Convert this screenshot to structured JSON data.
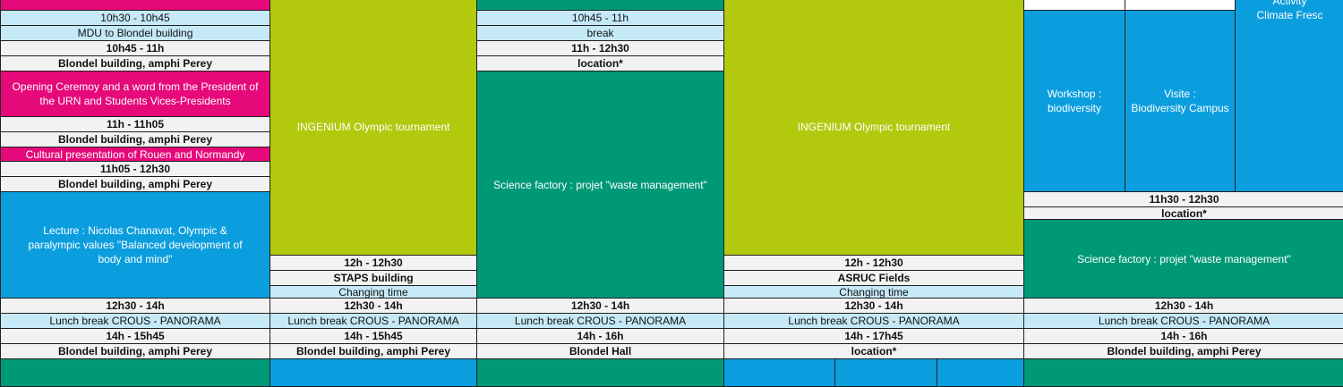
{
  "mon": {
    "t1": "10h30 - 10h45",
    "l1": "MDU to Blondel building",
    "t2": "10h45 - 11h",
    "l2": "Blondel building, amphi Perey",
    "opening": "Opening Ceremoy and a word from the President of the URN and Students Vices-Presidents",
    "t3": "11h - 11h05",
    "l3": "Blondel building, amphi Perey",
    "cultural": "Cultural presentation of Rouen and Normandy",
    "t4": "11h05 - 12h30",
    "l4": "Blondel building, amphi Perey",
    "lecture": "Lecture : Nicolas Chanavat, Olympic & paralympic values \"Balanced development of body and mind\"",
    "t5": "12h30 - 14h",
    "lunch": "Lunch break  CROUS - PANORAMA",
    "t6": "14h - 15h45",
    "l6": "Blondel building, amphi Perey"
  },
  "tue": {
    "olympic": "INGENIUM Olympic tournament",
    "t1": "12h - 12h30",
    "l1": "STAPS building",
    "changing": "Changing time",
    "t2": "12h30 - 14h",
    "lunch": "Lunch break  CROUS - PANORAMA",
    "t3": "14h - 15h45",
    "l3": "Blondel building, amphi Perey"
  },
  "wed": {
    "t1": "10h45 - 11h",
    "break": "break",
    "t2": "11h - 12h30",
    "l2": "location*",
    "science": "Science factory : projet \"waste management\"",
    "t3": "12h30 - 14h",
    "lunch": "Lunch break  CROUS - PANORAMA",
    "t4": "14h - 16h",
    "l4": "Blondel Hall"
  },
  "thu": {
    "olympic": "INGENIUM Olympic tournament",
    "t1": "12h - 12h30",
    "l1": "ASRUC Fields",
    "changing": "Changing time",
    "t2": "12h30 - 14h",
    "lunch": "Lunch break  CROUS - PANORAMA",
    "t3": "14h - 17h45",
    "l3": "location*"
  },
  "fri": {
    "activity_top": "Activity",
    "activity": "Climate Fresc",
    "workshop_a": "Workshop :",
    "workshop_b": "biodiversity",
    "visit_a": "Visite :",
    "visit_b": "Biodiversity Campus",
    "t1": "11h30 - 12h30",
    "l1": "location*",
    "science": "Science factory : projet \"waste management\"",
    "t2": "12h30 - 14h",
    "lunch": "Lunch break  CROUS - PANORAMA",
    "t3": "14h - 16h",
    "l3": "Blondel building, amphi Perey"
  },
  "colors": {
    "pink": "#e6097a",
    "lime": "#b2c90e",
    "teal": "#009977",
    "blue": "#0b9ede",
    "light_blue": "#c5e9f7",
    "grey": "#f2f2f2"
  }
}
